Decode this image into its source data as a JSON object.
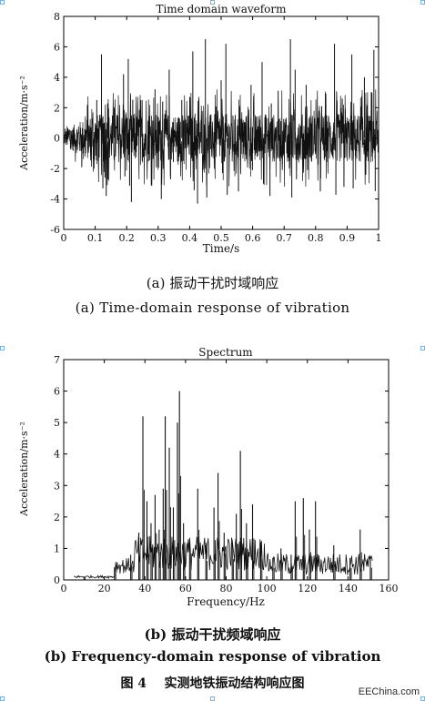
{
  "charts": {
    "chart_data": [
      {
        "type": "line",
        "title": "Time domain waveform",
        "xlabel": "Time/s",
        "ylabel": "Acceleration/m·s⁻²",
        "xlim": [
          0,
          1
        ],
        "ylim": [
          -6,
          8
        ],
        "xticks": [
          "0",
          "0.1",
          "0.2",
          "0.3",
          "0.4",
          "0.5",
          "0.6",
          "0.7",
          "0.8",
          "0.9",
          "1"
        ],
        "yticks": [
          "-6",
          "-4",
          "-2",
          "0",
          "2",
          "4",
          "6",
          "8"
        ],
        "grid": false,
        "series": [
          {
            "x": [
              0.105,
              0.12,
              0.135,
              0.16,
              0.19,
              0.205,
              0.215,
              0.245,
              0.29,
              0.31,
              0.335,
              0.375,
              0.41,
              0.425,
              0.45,
              0.5,
              0.515,
              0.555,
              0.595,
              0.63,
              0.655,
              0.72,
              0.735,
              0.77,
              0.815,
              0.86,
              0.89,
              0.915,
              0.955,
              0.985
            ],
            "y": [
              2.5,
              5.5,
              -3.8,
              2.0,
              4.2,
              5.2,
              -4.2,
              2.5,
              3.2,
              -4.0,
              4.5,
              2.5,
              5.7,
              -4.3,
              6.5,
              3.8,
              6.2,
              -3.5,
              3.5,
              5.0,
              -3.8,
              6.5,
              4.5,
              3.5,
              -3.5,
              6.2,
              -3.2,
              5.5,
              4.0,
              5.8
            ]
          }
        ]
      },
      {
        "type": "line",
        "title": "Spectrum",
        "xlabel": "Frequency/Hz",
        "ylabel": "Acceleration/m·s⁻²",
        "xlim": [
          0,
          160
        ],
        "ylim": [
          0,
          7
        ],
        "xticks": [
          "0",
          "20",
          "40",
          "60",
          "80",
          "100",
          "120",
          "140",
          "160"
        ],
        "yticks": [
          "0",
          "1",
          "2",
          "3",
          "4",
          "5",
          "6",
          "7"
        ],
        "grid": false,
        "series": [
          {
            "x": [
              10,
              25,
              33,
              37,
              39,
              41,
              43,
              45,
              47,
              49,
              50,
              52,
              54,
              56,
              57,
              59,
              62,
              66,
              70,
              74,
              76,
              79,
              83,
              85,
              87,
              90,
              93,
              97,
              103,
              107,
              112,
              114,
              118,
              121,
              124,
              133,
              141,
              146,
              151
            ],
            "y": [
              0.1,
              0.4,
              0.8,
              1.5,
              5.2,
              2.5,
              1.8,
              2.7,
              1.6,
              2.9,
              5.2,
              4.2,
              2.3,
              5.0,
              6.0,
              1.8,
              1.2,
              2.9,
              1.1,
              2.3,
              3.4,
              1.5,
              1.2,
              2.1,
              4.1,
              1.8,
              2.4,
              1.2,
              0.7,
              1.0,
              0.8,
              2.5,
              2.6,
              1.6,
              2.5,
              1.1,
              0.7,
              1.6,
              0.7
            ]
          }
        ]
      }
    ]
  },
  "captions": {
    "a_cn": "(a) 振动干扰时域响应",
    "a_en": "(a) Time-domain response of vibration",
    "b_cn": "(b) 振动干扰频域响应",
    "b_en": "(b) Frequency-domain response of vibration",
    "figure": "图 4    实测地铁振动结构响应图"
  },
  "watermark": "EEChina.com"
}
